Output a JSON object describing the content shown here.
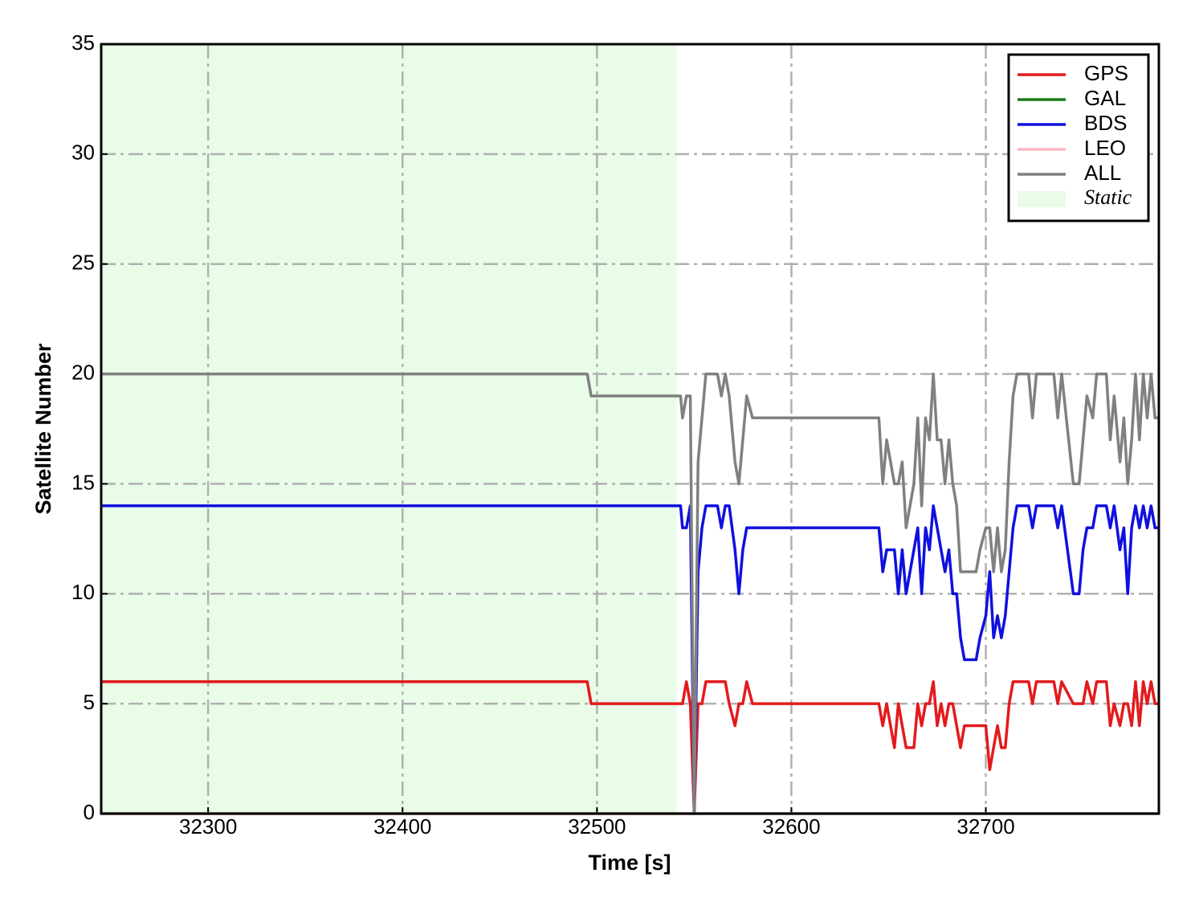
{
  "chart_data": {
    "type": "line",
    "xlabel": "Time [s]",
    "ylabel": "Satellite Number",
    "xlim": [
      32245,
      32789
    ],
    "ylim": [
      0,
      35
    ],
    "xticks": [
      32300,
      32400,
      32500,
      32600,
      32700
    ],
    "yticks": [
      0,
      5,
      10,
      15,
      20,
      25,
      30,
      35
    ],
    "grid": true,
    "legend": "upper right",
    "static_span": {
      "label": "Static",
      "from": 32245,
      "to": 32541,
      "color": "#e8fce8"
    },
    "x": [
      32245,
      32495,
      32497,
      32543,
      32544,
      32546,
      32548,
      32550,
      32552,
      32554,
      32556,
      32562,
      32564,
      32566,
      32568,
      32571,
      32573,
      32575,
      32577,
      32580,
      32645,
      32647,
      32649,
      32651,
      32653,
      32655,
      32657,
      32659,
      32661,
      32663,
      32665,
      32667,
      32669,
      32671,
      32673,
      32675,
      32677,
      32679,
      32681,
      32683,
      32685,
      32687,
      32689,
      32695,
      32697,
      32700,
      32702,
      32704,
      32706,
      32708,
      32710,
      32712,
      32714,
      32716,
      32722,
      32724,
      32726,
      32735,
      32737,
      32739,
      32745,
      32748,
      32750,
      32752,
      32755,
      32757,
      32762,
      32764,
      32766,
      32769,
      32771,
      32773,
      32775,
      32777,
      32779,
      32781,
      32783,
      32785,
      32787,
      32789
    ],
    "series": [
      {
        "name": "GPS",
        "color": "#e31a1c",
        "values": [
          6,
          6,
          5,
          5,
          5,
          6,
          5,
          0,
          5,
          5,
          6,
          6,
          6,
          6,
          5,
          4,
          5,
          5,
          6,
          5,
          5,
          4,
          5,
          4,
          3,
          5,
          4,
          3,
          3,
          3,
          5,
          4,
          5,
          5,
          6,
          4,
          5,
          4,
          5,
          5,
          4,
          3,
          4,
          4,
          4,
          4,
          2,
          3,
          4,
          3,
          3,
          5,
          6,
          6,
          6,
          5,
          6,
          6,
          5,
          6,
          5,
          5,
          5,
          6,
          5,
          6,
          6,
          4,
          5,
          4,
          5,
          5,
          4,
          6,
          4,
          6,
          5,
          6,
          5,
          5
        ]
      },
      {
        "name": "GAL",
        "color": "#1a7a1a",
        "values": [
          0,
          0,
          0,
          0,
          0,
          0,
          0,
          0,
          0,
          0,
          0,
          0,
          0,
          0,
          0,
          0,
          0,
          0,
          0,
          0,
          0,
          0,
          0,
          0,
          0,
          0,
          0,
          0,
          0,
          0,
          0,
          0,
          0,
          0,
          0,
          0,
          0,
          0,
          0,
          0,
          0,
          0,
          0,
          0,
          0,
          0,
          0,
          0,
          0,
          0,
          0,
          0,
          0,
          0,
          0,
          0,
          0,
          0,
          0,
          0,
          0,
          0,
          0,
          0,
          0,
          0,
          0,
          0,
          0,
          0,
          0,
          0,
          0,
          0,
          0,
          0,
          0,
          0,
          0,
          0
        ]
      },
      {
        "name": "BDS",
        "color": "#1010e0",
        "values": [
          14,
          14,
          14,
          14,
          13,
          13,
          14,
          0,
          11,
          13,
          14,
          14,
          13,
          14,
          14,
          12,
          10,
          12,
          13,
          13,
          13,
          11,
          12,
          12,
          12,
          10,
          12,
          10,
          11,
          12,
          13,
          10,
          13,
          12,
          14,
          13,
          12,
          11,
          12,
          10,
          10,
          8,
          7,
          7,
          8,
          9,
          11,
          8,
          9,
          8,
          9,
          11,
          13,
          14,
          14,
          13,
          14,
          14,
          13,
          14,
          10,
          10,
          12,
          13,
          13,
          14,
          14,
          13,
          14,
          12,
          13,
          10,
          13,
          14,
          13,
          14,
          13,
          14,
          13,
          13
        ]
      },
      {
        "name": "LEO",
        "color": "#ffb6c1",
        "values": [
          0,
          0,
          0,
          0,
          0,
          0,
          0,
          0,
          0,
          0,
          0,
          0,
          0,
          0,
          0,
          0,
          0,
          0,
          0,
          0,
          0,
          0,
          0,
          0,
          0,
          0,
          0,
          0,
          0,
          0,
          0,
          0,
          0,
          0,
          0,
          0,
          0,
          0,
          0,
          0,
          0,
          0,
          0,
          0,
          0,
          0,
          0,
          0,
          0,
          0,
          0,
          0,
          0,
          0,
          0,
          0,
          0,
          0,
          0,
          0,
          0,
          0,
          0,
          0,
          0,
          0,
          0,
          0,
          0,
          0,
          0,
          0,
          0,
          0,
          0,
          0,
          0,
          0,
          0,
          0
        ]
      },
      {
        "name": "ALL",
        "color": "#808080",
        "values": [
          20,
          20,
          19,
          19,
          18,
          19,
          19,
          0,
          16,
          18,
          20,
          20,
          19,
          20,
          19,
          16,
          15,
          17,
          19,
          18,
          18,
          15,
          17,
          16,
          15,
          15,
          16,
          13,
          14,
          15,
          18,
          14,
          18,
          17,
          20,
          17,
          17,
          15,
          17,
          15,
          14,
          11,
          11,
          11,
          12,
          13,
          13,
          11,
          13,
          11,
          12,
          16,
          19,
          20,
          20,
          18,
          20,
          20,
          18,
          20,
          15,
          15,
          17,
          19,
          18,
          20,
          20,
          17,
          19,
          16,
          18,
          15,
          17,
          20,
          17,
          20,
          18,
          20,
          18,
          18
        ]
      }
    ]
  }
}
